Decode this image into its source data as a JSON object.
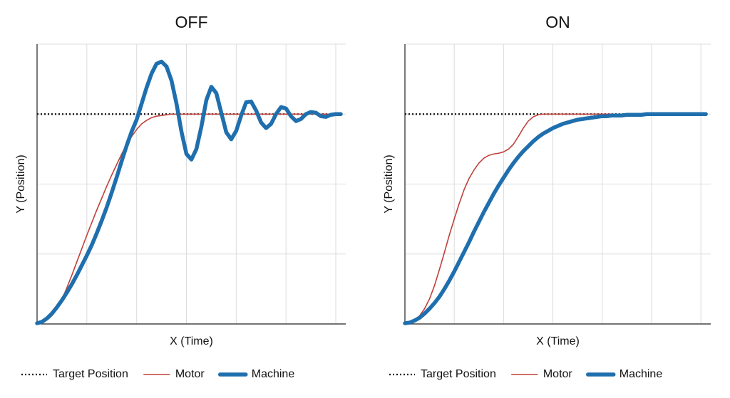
{
  "chart_data": [
    {
      "type": "line",
      "title": "OFF",
      "x_label": "X (Time)",
      "y_label": "Y (Position)",
      "xlim": [
        0,
        6.2
      ],
      "xticks": [
        1,
        2,
        3,
        4,
        5,
        6
      ],
      "ylim": [
        0,
        4
      ],
      "yticks": [
        1,
        2,
        3,
        4
      ],
      "grid": true,
      "legend": "bottom",
      "x": [
        0,
        0.1,
        0.2,
        0.3,
        0.4,
        0.5,
        0.6,
        0.7,
        0.8,
        0.9,
        1,
        1.1,
        1.2,
        1.3,
        1.4,
        1.5,
        1.6,
        1.7,
        1.8,
        1.9,
        2,
        2.1,
        2.2,
        2.3,
        2.4,
        2.5,
        2.6,
        2.7,
        2.8,
        2.9,
        3,
        3.1,
        3.2,
        3.3,
        3.4,
        3.5,
        3.6,
        3.7,
        3.8,
        3.9,
        4,
        4.1,
        4.2,
        4.3,
        4.4,
        4.5,
        4.6,
        4.7,
        4.8,
        4.9,
        5,
        5.1,
        5.2,
        5.3,
        5.4,
        5.5,
        5.6,
        5.7,
        5.8,
        5.9,
        6,
        6.1
      ],
      "series": [
        {
          "name": "Target Position",
          "color": "#111111",
          "style": "dotted",
          "width": 2.2,
          "values": [
            3,
            3,
            3,
            3,
            3,
            3,
            3,
            3,
            3,
            3,
            3,
            3,
            3,
            3,
            3,
            3,
            3,
            3,
            3,
            3,
            3,
            3,
            3,
            3,
            3,
            3,
            3,
            3,
            3,
            3,
            3,
            3,
            3,
            3,
            3,
            3,
            3,
            3,
            3,
            3,
            3,
            3,
            3,
            3,
            3,
            3,
            3,
            3,
            3,
            3,
            3,
            3,
            3,
            3,
            3,
            3,
            3,
            3,
            3,
            3,
            3,
            3
          ]
        },
        {
          "name": "Motor",
          "color": "#c0403a",
          "style": "solid",
          "width": 1.6,
          "values": [
            0.02,
            0.03,
            0.06,
            0.12,
            0.22,
            0.35,
            0.52,
            0.7,
            0.89,
            1.08,
            1.27,
            1.45,
            1.63,
            1.8,
            1.97,
            2.13,
            2.28,
            2.43,
            2.57,
            2.68,
            2.78,
            2.86,
            2.91,
            2.95,
            2.97,
            2.98,
            2.99,
            3,
            3,
            3,
            3,
            3,
            3,
            3,
            3,
            3,
            3,
            3,
            3,
            3,
            3,
            3,
            3,
            3,
            3,
            3,
            3,
            3,
            3,
            3,
            3,
            3,
            3,
            3,
            3,
            3,
            3,
            3,
            3,
            3,
            3,
            3
          ]
        },
        {
          "name": "Machine",
          "color": "#1f6fae",
          "style": "solid",
          "width": 5.5,
          "values": [
            0.01,
            0.03,
            0.08,
            0.15,
            0.24,
            0.34,
            0.45,
            0.57,
            0.7,
            0.84,
            0.98,
            1.13,
            1.3,
            1.48,
            1.67,
            1.88,
            2.1,
            2.33,
            2.55,
            2.75,
            2.92,
            3.15,
            3.38,
            3.58,
            3.72,
            3.75,
            3.68,
            3.48,
            3.15,
            2.75,
            2.43,
            2.35,
            2.5,
            2.82,
            3.2,
            3.39,
            3.3,
            3.02,
            2.74,
            2.64,
            2.76,
            2.98,
            3.17,
            3.18,
            3.05,
            2.88,
            2.8,
            2.86,
            3,
            3.1,
            3.08,
            2.97,
            2.9,
            2.93,
            3,
            3.03,
            3.02,
            2.97,
            2.96,
            2.99,
            3,
            3
          ]
        }
      ]
    },
    {
      "type": "line",
      "title": "ON",
      "x_label": "X (Time)",
      "y_label": "Y (Position)",
      "xlim": [
        0,
        6.2
      ],
      "xticks": [
        1,
        2,
        3,
        4,
        5,
        6
      ],
      "ylim": [
        0,
        4
      ],
      "yticks": [
        1,
        2,
        3,
        4
      ],
      "grid": true,
      "legend": "bottom",
      "x": [
        0,
        0.1,
        0.2,
        0.3,
        0.4,
        0.5,
        0.6,
        0.7,
        0.8,
        0.9,
        1,
        1.1,
        1.2,
        1.3,
        1.4,
        1.5,
        1.6,
        1.7,
        1.8,
        1.9,
        2,
        2.1,
        2.2,
        2.3,
        2.4,
        2.5,
        2.6,
        2.7,
        2.8,
        2.9,
        3,
        3.1,
        3.2,
        3.3,
        3.4,
        3.5,
        3.6,
        3.7,
        3.8,
        3.9,
        4,
        4.1,
        4.2,
        4.3,
        4.4,
        4.5,
        4.6,
        4.7,
        4.8,
        4.9,
        5,
        5.1,
        5.2,
        5.3,
        5.4,
        5.5,
        5.6,
        5.7,
        5.8,
        5.9,
        6,
        6.1
      ],
      "series": [
        {
          "name": "Target Position",
          "color": "#111111",
          "style": "dotted",
          "width": 2.2,
          "values": [
            3,
            3,
            3,
            3,
            3,
            3,
            3,
            3,
            3,
            3,
            3,
            3,
            3,
            3,
            3,
            3,
            3,
            3,
            3,
            3,
            3,
            3,
            3,
            3,
            3,
            3,
            3,
            3,
            3,
            3,
            3,
            3,
            3,
            3,
            3,
            3,
            3,
            3,
            3,
            3,
            3,
            3,
            3,
            3,
            3,
            3,
            3,
            3,
            3,
            3,
            3,
            3,
            3,
            3,
            3,
            3,
            3,
            3,
            3,
            3,
            3,
            3
          ]
        },
        {
          "name": "Motor",
          "color": "#c0403a",
          "style": "solid",
          "width": 1.6,
          "values": [
            0.02,
            0.03,
            0.06,
            0.12,
            0.22,
            0.36,
            0.55,
            0.78,
            1.02,
            1.27,
            1.5,
            1.72,
            1.92,
            2.08,
            2.2,
            2.3,
            2.37,
            2.41,
            2.43,
            2.44,
            2.46,
            2.5,
            2.57,
            2.68,
            2.8,
            2.9,
            2.96,
            2.99,
            3,
            3,
            3,
            3,
            3,
            3,
            3,
            3,
            3,
            3,
            3,
            3,
            3,
            3,
            3,
            3,
            3,
            3,
            3,
            3,
            3,
            3,
            3,
            3,
            3,
            3,
            3,
            3,
            3,
            3,
            3,
            3,
            3,
            3
          ]
        },
        {
          "name": "Machine",
          "color": "#1f6fae",
          "style": "solid",
          "width": 5.5,
          "values": [
            0.01,
            0.02,
            0.05,
            0.09,
            0.15,
            0.22,
            0.3,
            0.39,
            0.5,
            0.62,
            0.75,
            0.89,
            1.03,
            1.17,
            1.32,
            1.46,
            1.6,
            1.73,
            1.86,
            1.98,
            2.09,
            2.2,
            2.3,
            2.39,
            2.47,
            2.54,
            2.61,
            2.67,
            2.72,
            2.76,
            2.8,
            2.83,
            2.86,
            2.88,
            2.9,
            2.92,
            2.93,
            2.94,
            2.95,
            2.96,
            2.97,
            2.97,
            2.98,
            2.98,
            2.98,
            2.99,
            2.99,
            2.99,
            2.99,
            3,
            3,
            3,
            3,
            3,
            3,
            3,
            3,
            3,
            3,
            3,
            3,
            3
          ]
        }
      ]
    }
  ]
}
